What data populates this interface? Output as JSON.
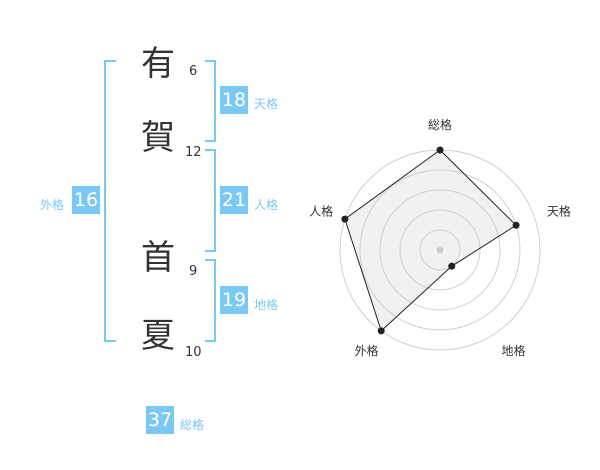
{
  "name_chars": [
    {
      "char": "有",
      "strokes": "6"
    },
    {
      "char": "賀",
      "strokes": "12"
    },
    {
      "char": "首",
      "strokes": "9"
    },
    {
      "char": "夏",
      "strokes": "10"
    }
  ],
  "results": {
    "tenkaku": {
      "value": "18",
      "label": "天格"
    },
    "jinkaku": {
      "value": "21",
      "label": "人格"
    },
    "chikaku": {
      "value": "19",
      "label": "地格"
    },
    "gaikaku": {
      "value": "16",
      "label": "外格"
    },
    "soukaku": {
      "value": "37",
      "label": "総格"
    }
  },
  "accent_color": "#7cc8f5",
  "chart_data": {
    "type": "radar",
    "axes": [
      "総格",
      "天格",
      "地格",
      "外格",
      "人格"
    ],
    "values": [
      5,
      4,
      1,
      5,
      5
    ],
    "range": [
      0,
      5
    ],
    "rings": 5
  }
}
